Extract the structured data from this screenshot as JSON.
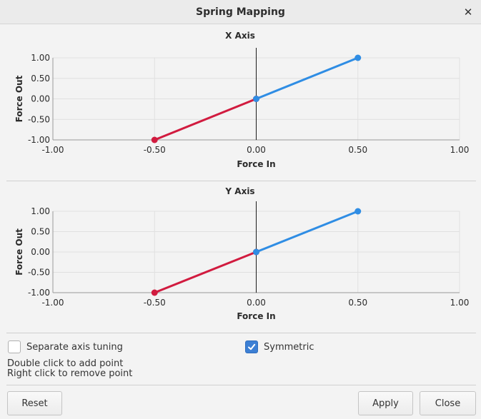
{
  "window": {
    "title": "Spring Mapping",
    "close_glyph": "✕"
  },
  "charts": [
    {
      "title": "X Axis",
      "xlabel": "Force In",
      "ylabel": "Force Out",
      "xticks": [
        "-1.00",
        "-0.50",
        "0.00",
        "0.50",
        "1.00"
      ],
      "yticks": [
        "1.00",
        "0.50",
        "0.00",
        "-0.50",
        "-1.00"
      ]
    },
    {
      "title": "Y Axis",
      "xlabel": "Force In",
      "ylabel": "Force Out",
      "xticks": [
        "-1.00",
        "-0.50",
        "0.00",
        "0.50",
        "1.00"
      ],
      "yticks": [
        "1.00",
        "0.50",
        "0.00",
        "-0.50",
        "-1.00"
      ]
    }
  ],
  "chart_data": [
    {
      "type": "line",
      "title": "X Axis",
      "xlabel": "Force In",
      "ylabel": "Force Out",
      "xlim": [
        -1.0,
        1.0
      ],
      "ylim": [
        -1.0,
        1.0
      ],
      "grid": true,
      "series": [
        {
          "color": "#d11b3f",
          "x": [
            -0.5,
            0.0
          ],
          "y": [
            -1.0,
            0.0
          ]
        },
        {
          "color": "#2f8de4",
          "x": [
            0.0,
            0.5
          ],
          "y": [
            0.0,
            1.0
          ]
        }
      ]
    },
    {
      "type": "line",
      "title": "Y Axis",
      "xlabel": "Force In",
      "ylabel": "Force Out",
      "xlim": [
        -1.0,
        1.0
      ],
      "ylim": [
        -1.0,
        1.0
      ],
      "grid": true,
      "series": [
        {
          "color": "#d11b3f",
          "x": [
            -0.5,
            0.0
          ],
          "y": [
            -1.0,
            0.0
          ]
        },
        {
          "color": "#2f8de4",
          "x": [
            0.0,
            0.5
          ],
          "y": [
            0.0,
            1.0
          ]
        }
      ]
    }
  ],
  "options": {
    "separate_axis": {
      "label": "Separate axis tuning",
      "checked": false
    },
    "symmetric": {
      "label": "Symmetric",
      "checked": true
    }
  },
  "hints": {
    "line1": "Double click to add point",
    "line2": "Right click to remove point"
  },
  "buttons": {
    "reset": "Reset",
    "apply": "Apply",
    "close": "Close"
  },
  "colors": {
    "negative_segment": "#d11b3f",
    "positive_segment": "#2f8de4",
    "checkbox_accent": "#3c7fd4"
  }
}
